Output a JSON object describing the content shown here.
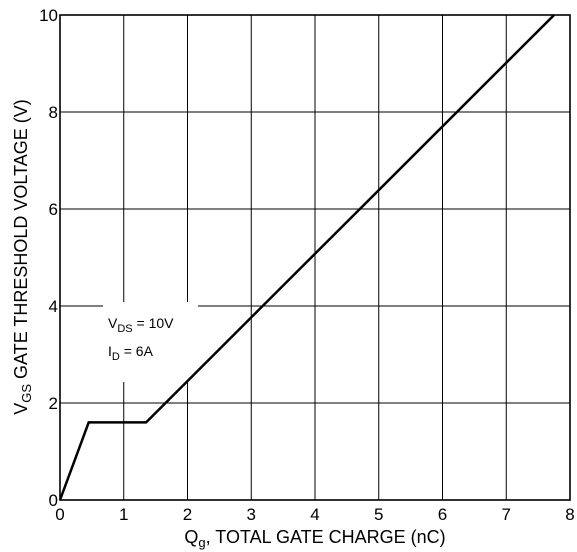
{
  "chart_data": {
    "type": "line",
    "title": "",
    "xlabel": {
      "main": "Q",
      "sub": "g",
      "rest": ", TOTAL GATE CHARGE (nC)"
    },
    "ylabel": {
      "main": "V",
      "sub": "GS",
      "rest": " GATE THRESHOLD VOLTAGE (V)"
    },
    "xlim": [
      0,
      8
    ],
    "ylim": [
      0,
      10
    ],
    "x_ticks": [
      0,
      1,
      2,
      3,
      4,
      5,
      6,
      7,
      8
    ],
    "y_ticks": [
      0,
      2,
      4,
      6,
      8,
      10
    ],
    "grid": true,
    "series": [
      {
        "x": [
          0,
          0.45,
          1.35,
          7.75
        ],
        "y": [
          0,
          1.6,
          1.6,
          10
        ]
      }
    ],
    "annotations": {
      "vds": {
        "main": "V",
        "sub": "DS",
        "rest": " = 10V"
      },
      "id": {
        "main": "I",
        "sub": "D",
        "rest": " = 6A"
      }
    }
  }
}
